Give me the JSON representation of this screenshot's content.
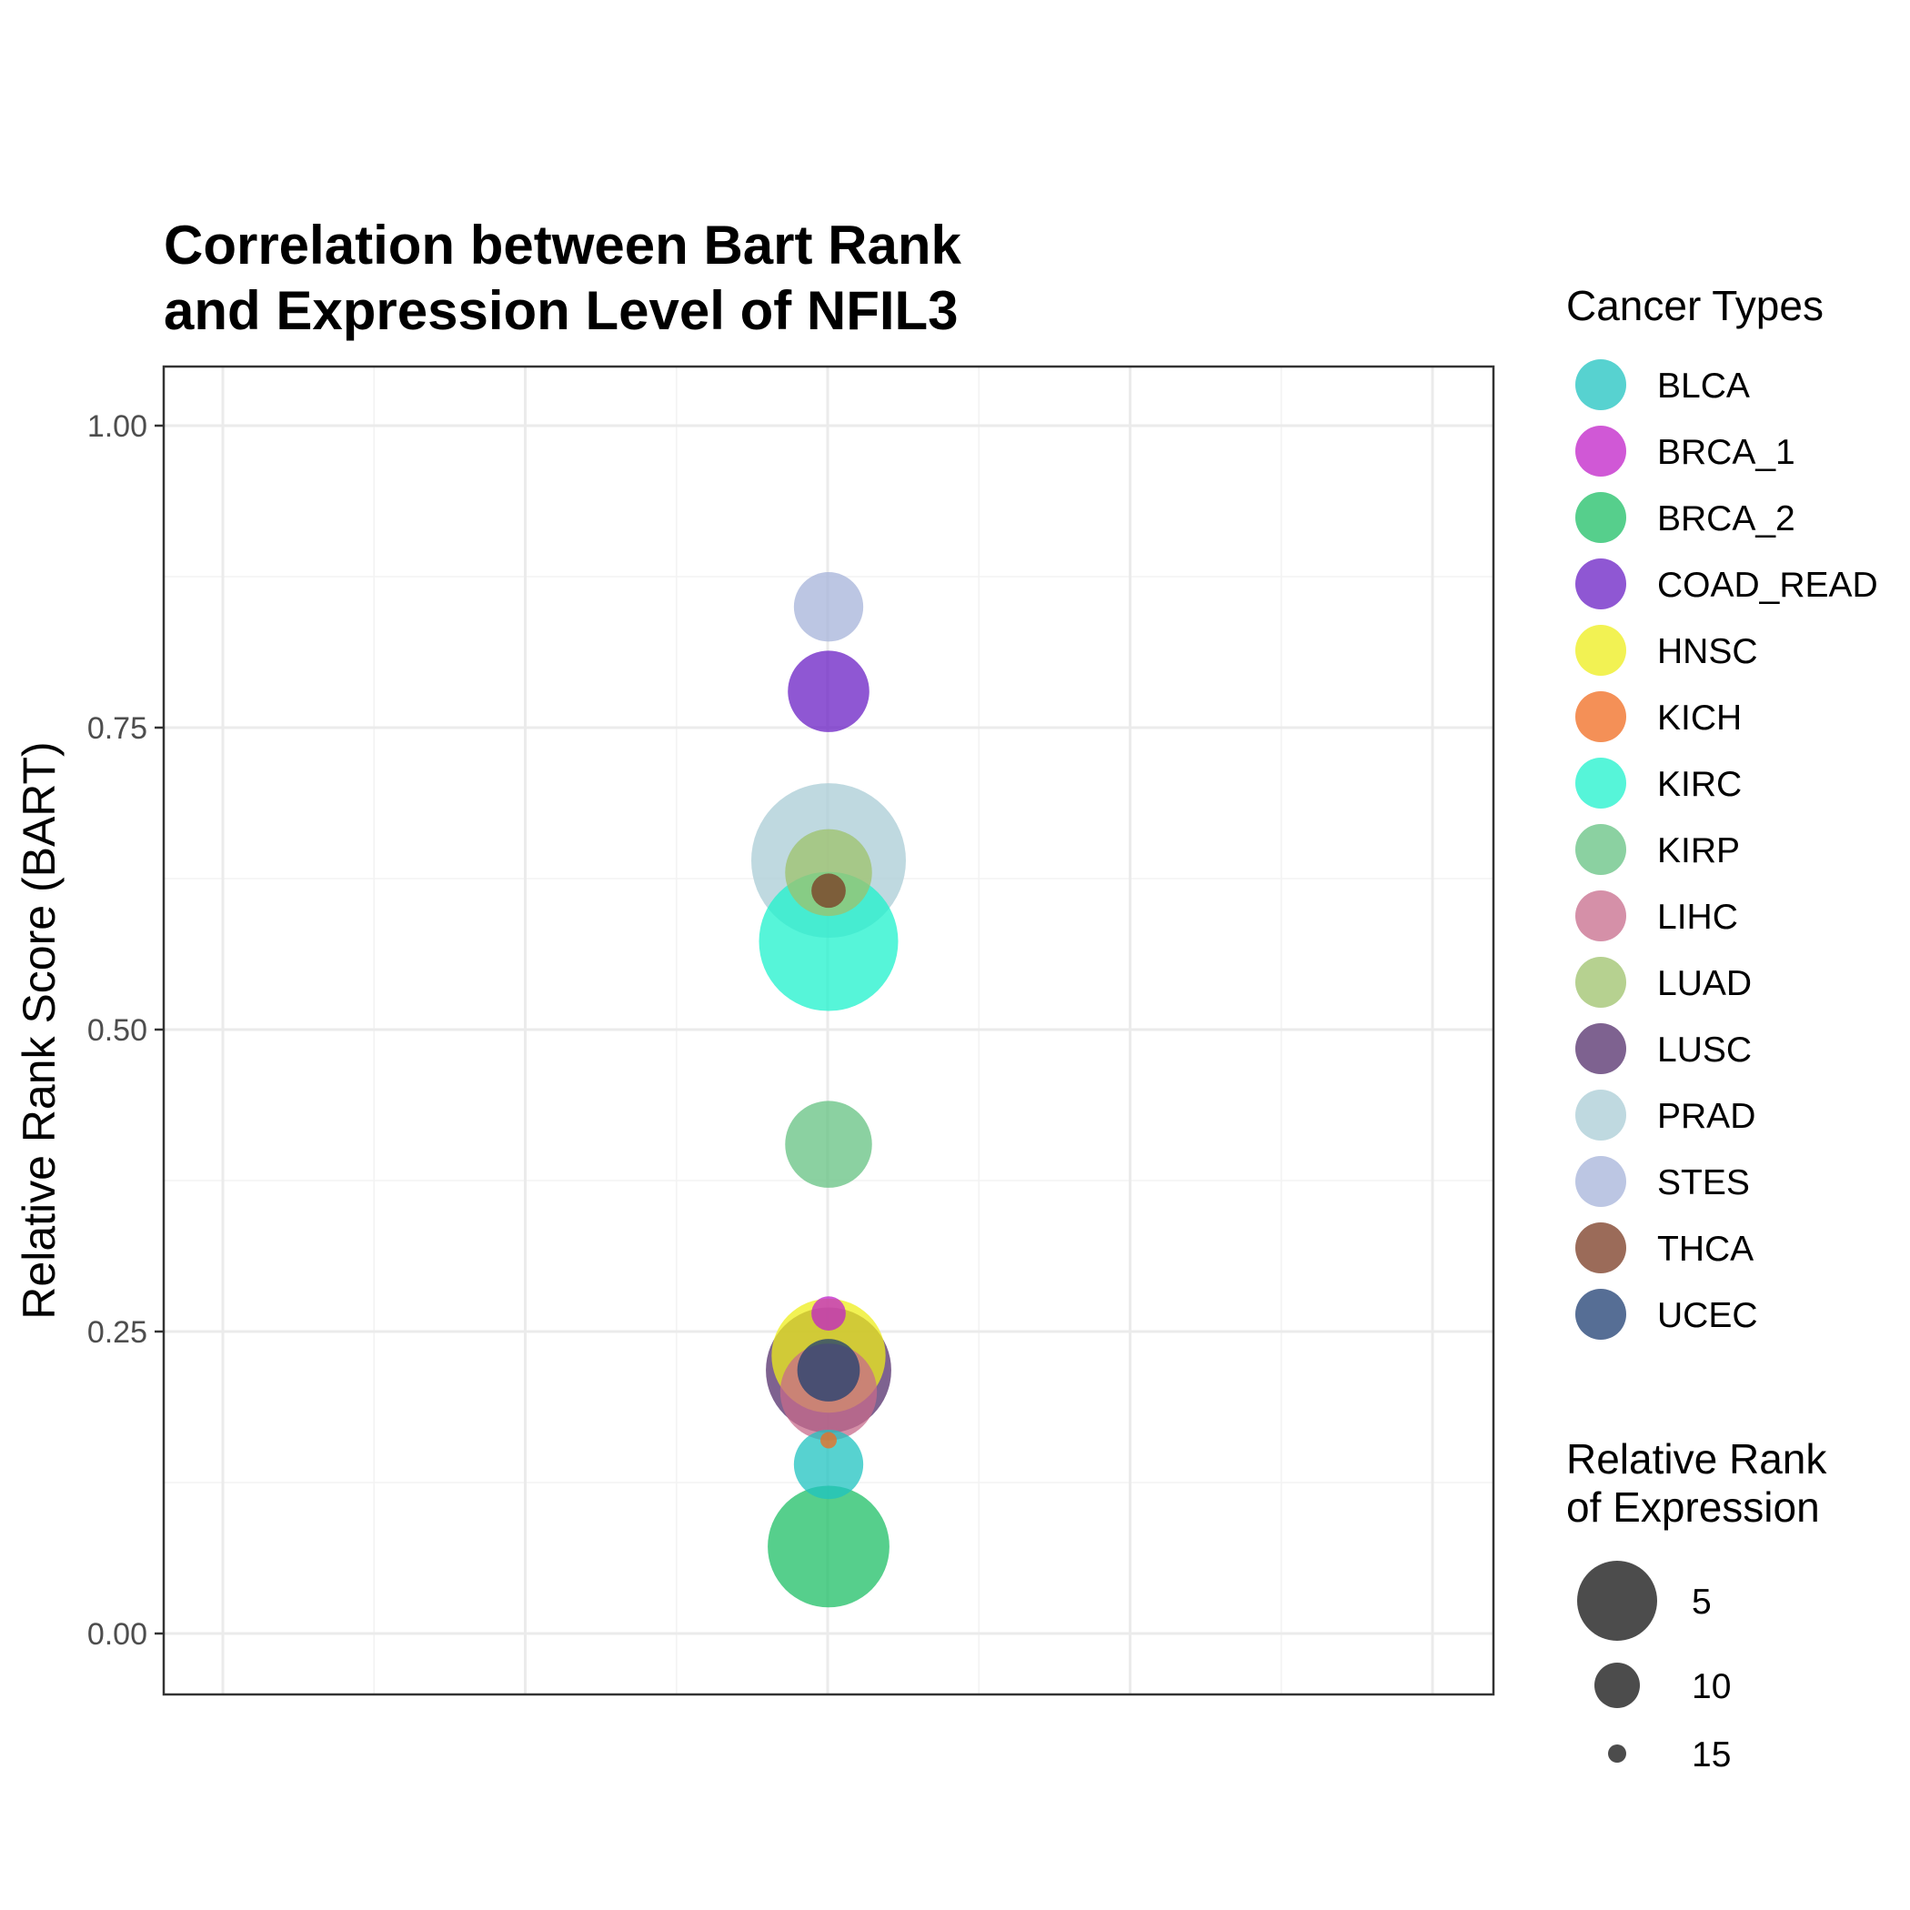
{
  "chart_data": {
    "type": "scatter",
    "title": "Correlation between Bart Rank\nand Expression Level of NFIL3",
    "xlabel": "",
    "ylabel": "Relative Rank Score (BART)",
    "ylim": [
      -0.05,
      1.05
    ],
    "y_ticks": [
      "0.00",
      "0.25",
      "0.50",
      "0.75",
      "1.00"
    ],
    "grid": true,
    "legend_position": "right",
    "color_legend_title": "Cancer Types",
    "size_legend_title": "Relative Rank\nof Expression",
    "size_legend": [
      {
        "label": "5",
        "value": 5
      },
      {
        "label": "10",
        "value": 10
      },
      {
        "label": "15",
        "value": 15
      }
    ],
    "series": [
      {
        "name": "BLCA",
        "color": "#1fc3c0",
        "y": 0.14,
        "expression_rank": 12.5
      },
      {
        "name": "BRCA_1",
        "color": "#c020c8",
        "y": 0.265,
        "expression_rank": 14.5
      },
      {
        "name": "BRCA_2",
        "color": "#1dbf66",
        "y": 0.072,
        "expression_rank": 7
      },
      {
        "name": "COAD_READ",
        "color": "#6a1fc4",
        "y": 0.78,
        "expression_rank": 11.5
      },
      {
        "name": "HNSC",
        "color": "#eeee1a",
        "y": 0.23,
        "expression_rank": 8
      },
      {
        "name": "KICH",
        "color": "#f06b1f",
        "y": 0.16,
        "expression_rank": 15
      },
      {
        "name": "KIRC",
        "color": "#1df2cc",
        "y": 0.573,
        "expression_rank": 4.5
      },
      {
        "name": "KIRP",
        "color": "#64c282",
        "y": 0.405,
        "expression_rank": 11
      },
      {
        "name": "LIHC",
        "color": "#c76b8b",
        "y": 0.2,
        "expression_rank": 10
      },
      {
        "name": "LUAD",
        "color": "#9dc26b",
        "y": 0.63,
        "expression_rank": 11
      },
      {
        "name": "LUSC",
        "color": "#532d6b",
        "y": 0.218,
        "expression_rank": 6.5
      },
      {
        "name": "PRAD",
        "color": "#a9ccd6",
        "y": 0.64,
        "expression_rank": 2
      },
      {
        "name": "STES",
        "color": "#a5b3d9",
        "y": 0.85,
        "expression_rank": 12.5
      },
      {
        "name": "THCA",
        "color": "#7a3a22",
        "y": 0.615,
        "expression_rank": 14.5
      },
      {
        "name": "UCEC",
        "color": "#1d3d71",
        "y": 0.218,
        "expression_rank": 13
      }
    ]
  }
}
